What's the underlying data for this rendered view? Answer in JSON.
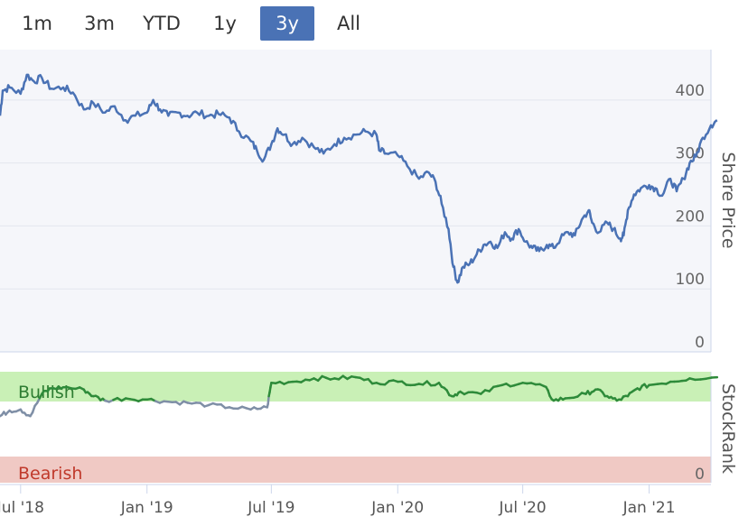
{
  "range_selector": {
    "buttons": [
      "1m",
      "3m",
      "YTD",
      "1y",
      "3y",
      "All"
    ],
    "active": "3y"
  },
  "colors": {
    "price_line": "#4a72b5",
    "rank_bullish": "#2e8b3a",
    "rank_neutral": "#7f8fa6",
    "bullish_band": "#c9f0b6",
    "bearish_band": "#f0c9c4",
    "bearish_text": "#c0392b",
    "bullish_text": "#2e7d32"
  },
  "chart_data": [
    {
      "type": "line",
      "title": "",
      "ylabel": "Share Price",
      "ylim": [
        0,
        480
      ],
      "yticks": [
        0,
        100,
        200,
        300,
        400
      ],
      "x_start": "2018-06",
      "x_end": "2021-04",
      "xticks": [
        "Jul '18",
        "Jan '19",
        "Jul '19",
        "Jan '20",
        "Jul '20",
        "Jan '21"
      ],
      "grid": true,
      "series": [
        {
          "points": [
            [
              "2018-06-01",
              375
            ],
            [
              "2018-06-05",
              415
            ],
            [
              "2018-06-15",
              420
            ],
            [
              "2018-07-01",
              410
            ],
            [
              "2018-07-10",
              440
            ],
            [
              "2018-07-20",
              430
            ],
            [
              "2018-08-01",
              435
            ],
            [
              "2018-08-15",
              418
            ],
            [
              "2018-09-01",
              420
            ],
            [
              "2018-09-15",
              412
            ],
            [
              "2018-10-01",
              385
            ],
            [
              "2018-10-15",
              395
            ],
            [
              "2018-11-01",
              380
            ],
            [
              "2018-11-15",
              390
            ],
            [
              "2018-12-01",
              368
            ],
            [
              "2018-12-15",
              375
            ],
            [
              "2019-01-01",
              380
            ],
            [
              "2019-01-10",
              400
            ],
            [
              "2019-01-20",
              385
            ],
            [
              "2019-02-01",
              375
            ],
            [
              "2019-02-15",
              380
            ],
            [
              "2019-03-01",
              375
            ],
            [
              "2019-03-15",
              380
            ],
            [
              "2019-04-01",
              375
            ],
            [
              "2019-04-15",
              378
            ],
            [
              "2019-05-01",
              372
            ],
            [
              "2019-05-15",
              350
            ],
            [
              "2019-06-01",
              335
            ],
            [
              "2019-06-10",
              320
            ],
            [
              "2019-06-20",
              305
            ],
            [
              "2019-07-01",
              330
            ],
            [
              "2019-07-10",
              355
            ],
            [
              "2019-07-20",
              345
            ],
            [
              "2019-08-01",
              330
            ],
            [
              "2019-08-15",
              340
            ],
            [
              "2019-09-01",
              325
            ],
            [
              "2019-09-15",
              315
            ],
            [
              "2019-10-01",
              330
            ],
            [
              "2019-10-15",
              340
            ],
            [
              "2019-11-01",
              345
            ],
            [
              "2019-11-15",
              350
            ],
            [
              "2019-12-01",
              345
            ],
            [
              "2019-12-05",
              320
            ],
            [
              "2019-12-15",
              315
            ],
            [
              "2020-01-01",
              312
            ],
            [
              "2020-01-15",
              295
            ],
            [
              "2020-02-01",
              275
            ],
            [
              "2020-02-15",
              285
            ],
            [
              "2020-02-25",
              270
            ],
            [
              "2020-03-05",
              235
            ],
            [
              "2020-03-15",
              195
            ],
            [
              "2020-03-22",
              135
            ],
            [
              "2020-03-28",
              110
            ],
            [
              "2020-04-05",
              135
            ],
            [
              "2020-04-15",
              140
            ],
            [
              "2020-04-25",
              155
            ],
            [
              "2020-05-05",
              170
            ],
            [
              "2020-05-15",
              175
            ],
            [
              "2020-05-25",
              165
            ],
            [
              "2020-06-05",
              190
            ],
            [
              "2020-06-15",
              180
            ],
            [
              "2020-06-25",
              195
            ],
            [
              "2020-07-05",
              175
            ],
            [
              "2020-07-15",
              165
            ],
            [
              "2020-07-25",
              160
            ],
            [
              "2020-08-05",
              170
            ],
            [
              "2020-08-15",
              165
            ],
            [
              "2020-08-25",
              180
            ],
            [
              "2020-09-05",
              190
            ],
            [
              "2020-09-15",
              185
            ],
            [
              "2020-09-25",
              210
            ],
            [
              "2020-10-05",
              225
            ],
            [
              "2020-10-10",
              205
            ],
            [
              "2020-10-20",
              190
            ],
            [
              "2020-11-01",
              205
            ],
            [
              "2020-11-10",
              195
            ],
            [
              "2020-11-20",
              180
            ],
            [
              "2020-11-25",
              185
            ],
            [
              "2020-12-01",
              225
            ],
            [
              "2020-12-10",
              250
            ],
            [
              "2020-12-20",
              260
            ],
            [
              "2021-01-01",
              265
            ],
            [
              "2021-01-10",
              260
            ],
            [
              "2021-01-20",
              248
            ],
            [
              "2021-02-01",
              275
            ],
            [
              "2021-02-10",
              255
            ],
            [
              "2021-02-20",
              275
            ],
            [
              "2021-03-01",
              300
            ],
            [
              "2021-03-10",
              310
            ],
            [
              "2021-03-20",
              340
            ],
            [
              "2021-04-01",
              360
            ],
            [
              "2021-04-10",
              368
            ]
          ]
        }
      ]
    },
    {
      "type": "line",
      "title": "",
      "ylabel": "StockRank",
      "ylim": [
        0,
        100
      ],
      "yticks": [
        0
      ],
      "bands": [
        "Bullish",
        "Bearish"
      ],
      "series": [
        {
          "points": [
            [
              "2018-06-01",
              60
            ],
            [
              "2018-06-15",
              65
            ],
            [
              "2018-07-01",
              66
            ],
            [
              "2018-07-15",
              60
            ],
            [
              "2018-08-01",
              80
            ],
            [
              "2018-08-15",
              85
            ],
            [
              "2018-09-01",
              86
            ],
            [
              "2018-10-01",
              84
            ],
            [
              "2018-10-15",
              78
            ],
            [
              "2018-11-01",
              74
            ],
            [
              "2018-12-01",
              76
            ],
            [
              "2019-01-01",
              75
            ],
            [
              "2019-02-01",
              73
            ],
            [
              "2019-03-01",
              72
            ],
            [
              "2019-04-01",
              70
            ],
            [
              "2019-05-01",
              68
            ],
            [
              "2019-06-01",
              66
            ],
            [
              "2019-06-25",
              68
            ],
            [
              "2019-07-01",
              90
            ],
            [
              "2019-08-01",
              91
            ],
            [
              "2019-09-01",
              94
            ],
            [
              "2019-10-01",
              94
            ],
            [
              "2019-11-01",
              95
            ],
            [
              "2019-12-01",
              90
            ],
            [
              "2020-01-01",
              91
            ],
            [
              "2020-02-01",
              89
            ],
            [
              "2020-03-01",
              90
            ],
            [
              "2020-03-20",
              78
            ],
            [
              "2020-04-01",
              82
            ],
            [
              "2020-05-01",
              80
            ],
            [
              "2020-06-01",
              88
            ],
            [
              "2020-07-01",
              90
            ],
            [
              "2020-08-01",
              87
            ],
            [
              "2020-08-15",
              74
            ],
            [
              "2020-09-01",
              76
            ],
            [
              "2020-10-01",
              80
            ],
            [
              "2020-10-15",
              84
            ],
            [
              "2020-11-01",
              78
            ],
            [
              "2020-11-15",
              74
            ],
            [
              "2020-12-01",
              78
            ],
            [
              "2020-12-15",
              85
            ],
            [
              "2021-01-01",
              88
            ],
            [
              "2021-02-01",
              91
            ],
            [
              "2021-03-01",
              94
            ],
            [
              "2021-04-10",
              95
            ]
          ]
        }
      ]
    }
  ],
  "labels": {
    "bullish": "Bullish",
    "bearish": "Bearish",
    "share_price": "Share Price",
    "stockrank": "StockRank",
    "rank_zero": "0"
  }
}
